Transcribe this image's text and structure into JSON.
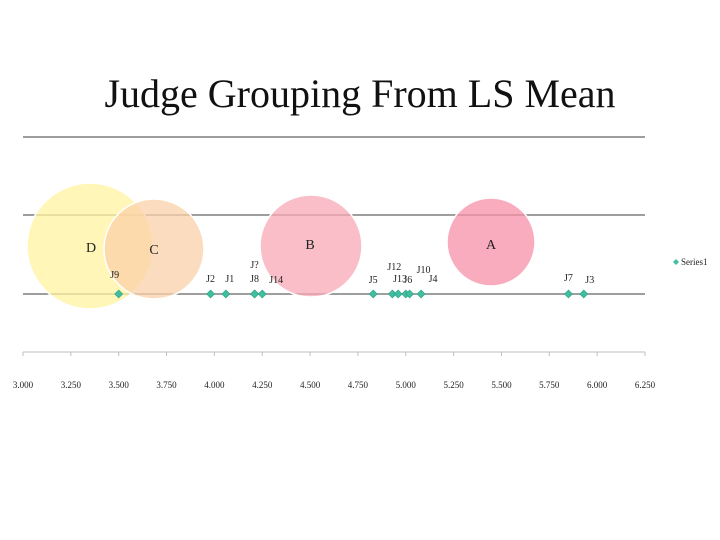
{
  "title": "Judge Grouping From LS Mean",
  "chart_data": {
    "type": "scatter",
    "xlim": [
      3.0,
      6.25
    ],
    "x_ticks": [
      "3.000",
      "3.250",
      "3.500",
      "3.750",
      "4.000",
      "4.250",
      "4.500",
      "4.750",
      "5.000",
      "5.250",
      "5.500",
      "5.750",
      "6.000",
      "6.250"
    ],
    "grid": true,
    "legend": {
      "position": "right",
      "entries": [
        "Series1"
      ]
    },
    "series": [
      {
        "name": "Series1",
        "color": "#3fbfa0",
        "points": [
          {
            "label": "J9",
            "x": 3.5
          },
          {
            "label": "J2",
            "x": 3.98
          },
          {
            "label": "J1",
            "x": 4.06
          },
          {
            "label": "J?",
            "x": 4.21
          },
          {
            "label": "J8",
            "x": 4.21
          },
          {
            "label": "J14",
            "x": 4.25
          },
          {
            "label": "J5",
            "x": 4.83
          },
          {
            "label": "J12",
            "x": 4.93
          },
          {
            "label": "J13",
            "x": 4.96
          },
          {
            "label": "J6",
            "x": 5.0
          },
          {
            "label": "J10",
            "x": 5.02
          },
          {
            "label": "J4",
            "x": 5.08
          },
          {
            "label": "J7",
            "x": 5.85
          },
          {
            "label": "J3",
            "x": 5.93
          }
        ]
      }
    ],
    "groups": [
      {
        "label": "D",
        "color": "#fff3a0"
      },
      {
        "label": "C",
        "color": "#fbd0a8"
      },
      {
        "label": "B",
        "color": "#f7a8b4"
      },
      {
        "label": "A",
        "color": "#f590a8"
      }
    ]
  }
}
